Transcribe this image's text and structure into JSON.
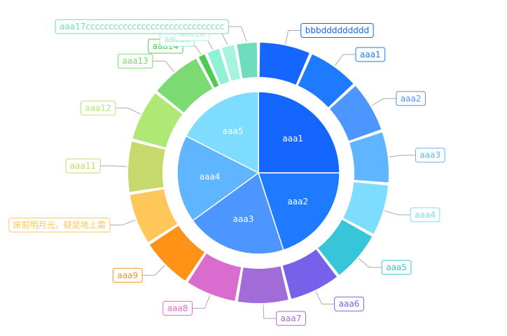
{
  "chart_data": {
    "type": "pie",
    "inner": {
      "slices": [
        {
          "label": "aaa1",
          "value": 25,
          "color": "#1565FF"
        },
        {
          "label": "aaa2",
          "value": 20,
          "color": "#1E7BFF"
        },
        {
          "label": "aaa3",
          "value": 20,
          "color": "#4D95FF"
        },
        {
          "label": "aaa4",
          "value": 17.5,
          "color": "#5FB5FF"
        },
        {
          "label": "aaa5",
          "value": 17.5,
          "color": "#7DDCFF"
        }
      ]
    },
    "outer": {
      "slices": [
        {
          "label": "bbbddddddddd",
          "value": 2.8,
          "color": "#1565FF"
        },
        {
          "label": "aaa1",
          "value": 2.8,
          "color": "#1E7BFF"
        },
        {
          "label": "aaa2",
          "value": 2.8,
          "color": "#4D95FF"
        },
        {
          "label": "aaa3",
          "value": 2.8,
          "color": "#5FB5FF"
        },
        {
          "label": "aaa4",
          "value": 2.8,
          "color": "#7DDCFF"
        },
        {
          "label": "aaa5",
          "value": 2.8,
          "color": "#36C5D9"
        },
        {
          "label": "aaa6",
          "value": 2.8,
          "color": "#7760EA"
        },
        {
          "label": "aaa7",
          "value": 2.8,
          "color": "#A26CD8"
        },
        {
          "label": "aaa8",
          "value": 2.8,
          "color": "#DA6CCF"
        },
        {
          "label": "aaa9",
          "value": 2.8,
          "color": "#FF9217"
        },
        {
          "label": "床前明月光，疑是地上霜",
          "value": 2.8,
          "color": "#FFC75A"
        },
        {
          "label": "aaa11",
          "value": 2.8,
          "color": "#C7D86C"
        },
        {
          "label": "aaa12",
          "value": 2.8,
          "color": "#AFE875"
        },
        {
          "label": "aaa13",
          "value": 2.8,
          "color": "#7BDB72"
        },
        {
          "label": "aaa14",
          "value": 0.5,
          "color": "#4FCB51"
        },
        {
          "label": "aaa15",
          "value": 0.8,
          "color": "#8FF2D5"
        },
        {
          "label": "aaa16",
          "value": 0.8,
          "color": "#A8F3E0"
        },
        {
          "label": "aaa17cccccccccccccccccccccccccccccc",
          "value": 1.2,
          "color": "#6DDDBD"
        }
      ]
    }
  }
}
